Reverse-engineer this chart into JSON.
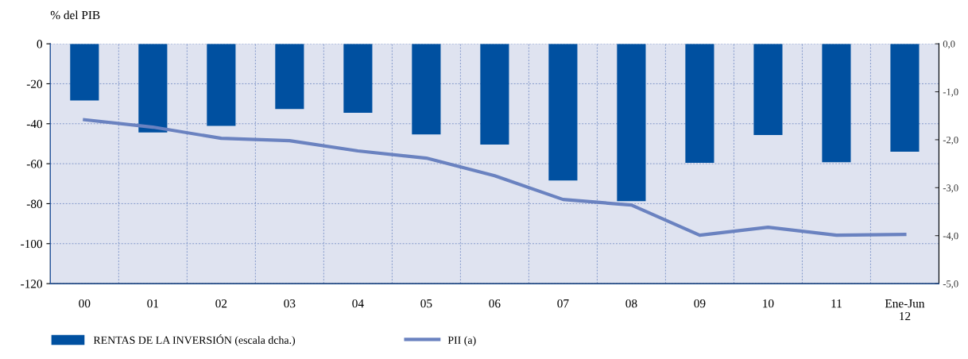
{
  "chart_data": {
    "type": "bar",
    "ylabel": "% del PIB",
    "categories": [
      "00",
      "01",
      "02",
      "03",
      "04",
      "05",
      "06",
      "07",
      "08",
      "09",
      "10",
      "11",
      "Ene-Jun\n12"
    ],
    "series": [
      {
        "name": "RENTAS DE LA INVERSIÓN (escala dcha.)",
        "type": "bar",
        "axis": "y2",
        "color": "#0050a0",
        "values": [
          -1.18,
          -1.85,
          -1.71,
          -1.36,
          -1.44,
          -1.89,
          -2.1,
          -2.85,
          -3.28,
          -2.48,
          -1.9,
          -2.47,
          -2.25
        ]
      },
      {
        "name": "PII (a)",
        "type": "line",
        "color": "#6a82c0",
        "values": [
          -38,
          -41.7,
          -47.3,
          -48.5,
          -53.6,
          -57.2,
          -66,
          -77.9,
          -80.7,
          -95.8,
          -91.8,
          -95.8,
          -95.4
        ]
      }
    ],
    "ylim": [
      -120,
      0
    ],
    "yticks": [
      {
        "value": -120,
        "label": "-120"
      },
      {
        "value": -100,
        "label": "-100"
      },
      {
        "value": -80,
        "label": "-80"
      },
      {
        "value": -60,
        "label": "-60"
      },
      {
        "value": -40,
        "label": "-40"
      },
      {
        "value": -20,
        "label": "-20"
      },
      0
    ],
    "y2lim": [
      -5,
      0
    ],
    "y2ticks": [
      {
        "value": -5,
        "label": "-5,0"
      },
      {
        "value": -4,
        "label": "-4,0"
      },
      {
        "value": -3,
        "label": "-3,0"
      },
      {
        "value": -2,
        "label": "-2,0"
      },
      {
        "value": -1,
        "label": "-1,0"
      },
      {
        "value": 0,
        "label": "0,0"
      }
    ],
    "grid": true,
    "legend": "bottom",
    "marker": "none",
    "line_style": "solid"
  }
}
